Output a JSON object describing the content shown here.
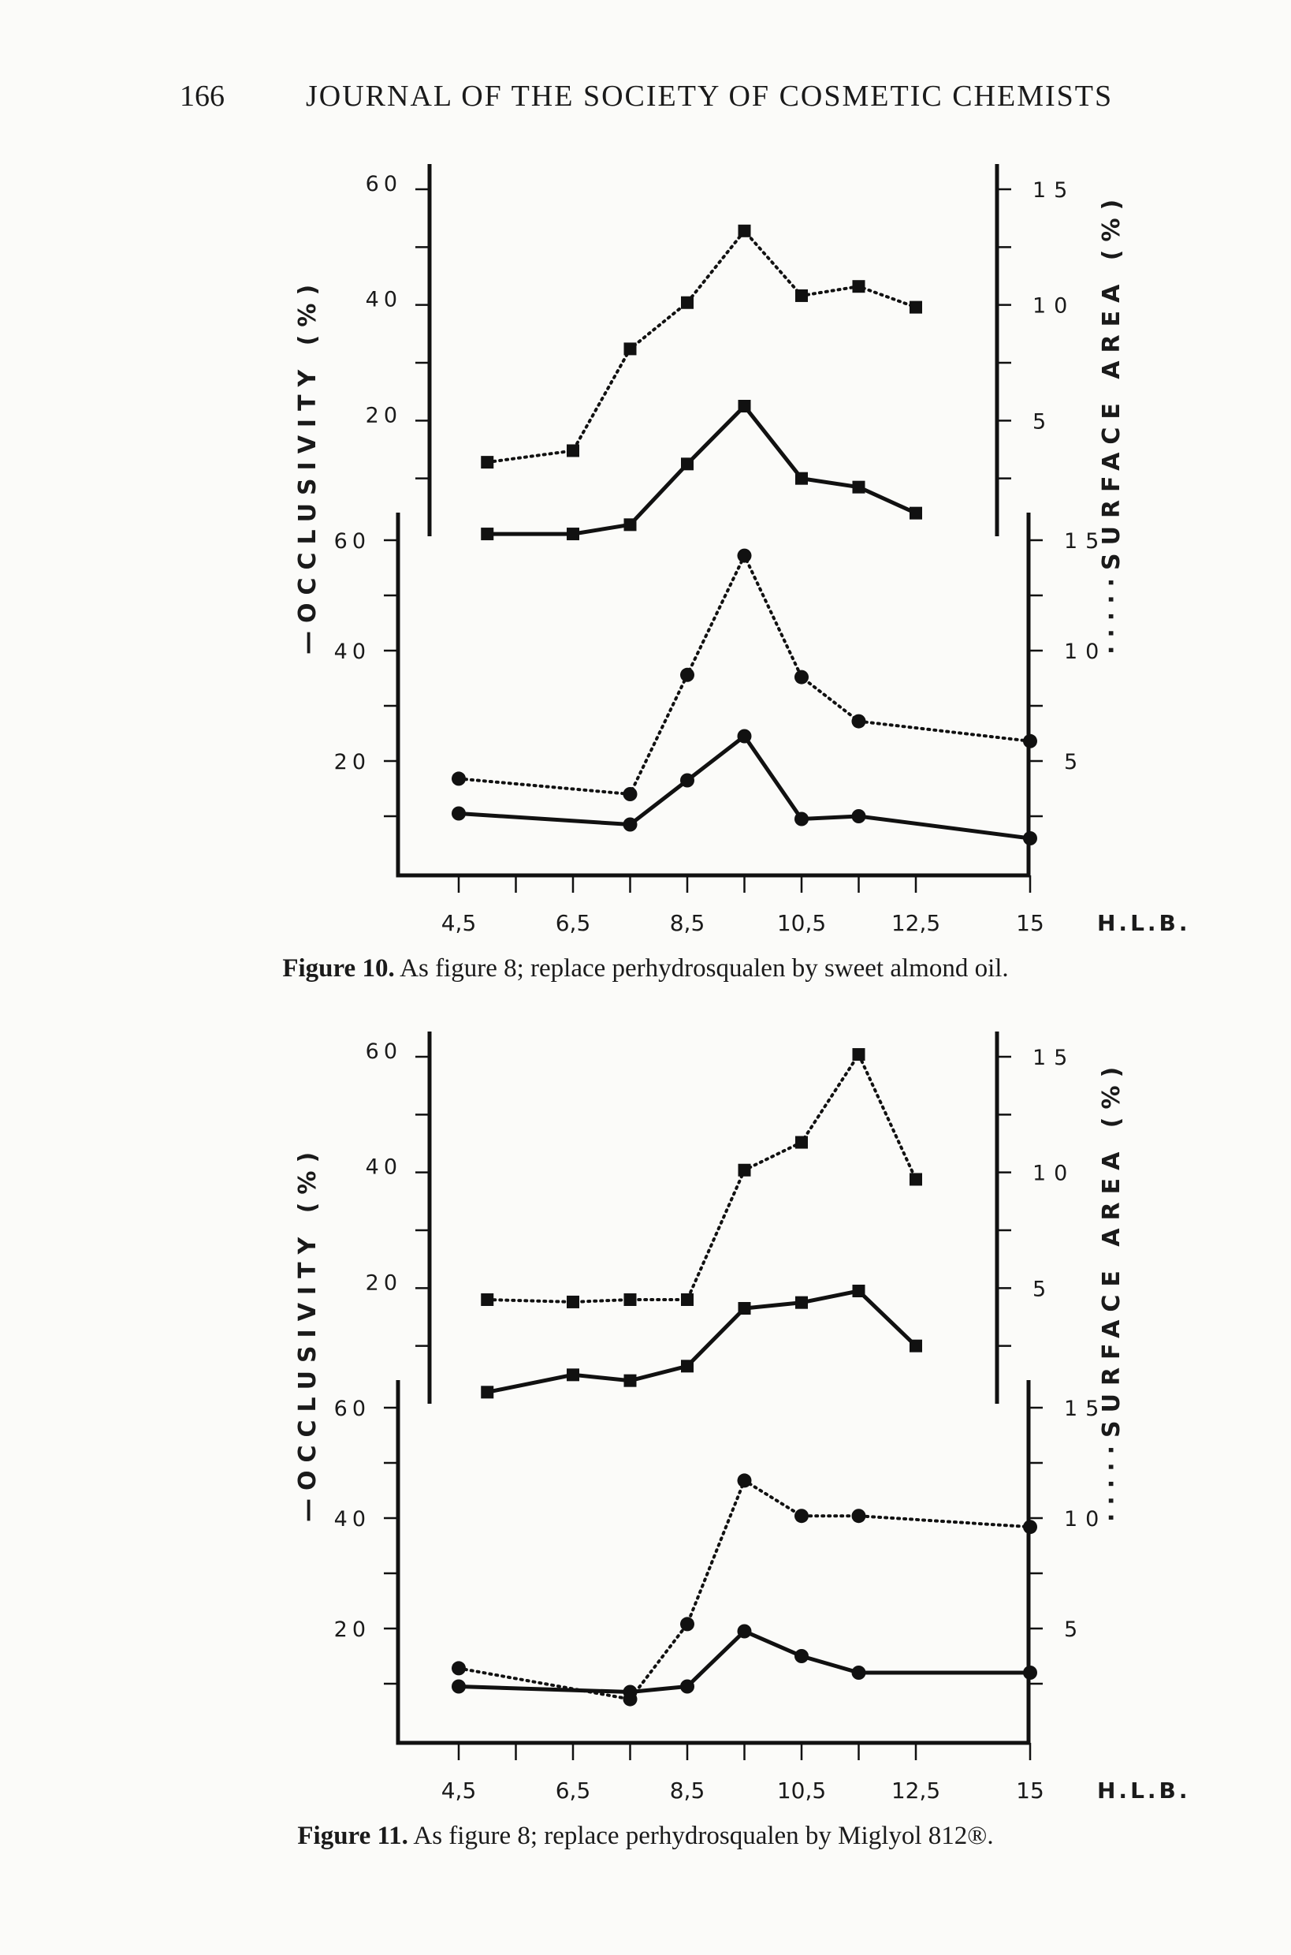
{
  "header": {
    "page_number": "166",
    "journal_title": "JOURNAL OF THE SOCIETY OF COSMETIC CHEMISTS"
  },
  "figures": [
    {
      "caption_label": "Figure 10.",
      "caption_text": "As figure 8; replace perhydrosqualen by sweet almond oil."
    },
    {
      "caption_label": "Figure 11.",
      "caption_text": "As figure 8; replace perhydrosqualen by Miglyol 812®."
    }
  ],
  "chart_data": [
    {
      "type": "line",
      "figure": "Figure 10",
      "panel": "upper (squares)",
      "xlabel": "H.L.B.",
      "x_tick_labels": [
        "4,5",
        "6,5",
        "8,5",
        "10,5",
        "12,5",
        "15"
      ],
      "left_axis": {
        "label": "OCCLUSIVITY (%)",
        "ticks": [
          "20",
          "40",
          "60"
        ],
        "ylim": [
          0,
          60
        ]
      },
      "right_axis": {
        "label": "SURFACE AREA (%)",
        "ticks": [
          "5",
          "10",
          "15"
        ],
        "ylim": [
          0,
          15
        ]
      },
      "series": [
        {
          "axis": "left",
          "style": "solid",
          "marker": "square",
          "x": [
            5,
            6.5,
            7.5,
            8.5,
            9.5,
            10.5,
            11.5,
            12.5
          ],
          "values": [
            0.4,
            0.4,
            2,
            12.5,
            22.5,
            10,
            8.5,
            4
          ]
        },
        {
          "axis": "right",
          "style": "dotted",
          "marker": "square",
          "x": [
            5,
            6.5,
            7.5,
            8.5,
            9.5,
            10.5,
            11.5,
            12.5
          ],
          "values": [
            3.2,
            3.7,
            8.1,
            10.1,
            13.2,
            10.4,
            10.8,
            9.9
          ]
        }
      ]
    },
    {
      "type": "line",
      "figure": "Figure 10",
      "panel": "lower (circles)",
      "xlabel": "H.L.B.",
      "x_tick_labels": [
        "4,5",
        "6,5",
        "8,5",
        "10,5",
        "12,5",
        "15"
      ],
      "left_axis": {
        "label": "OCCLUSIVITY (%)",
        "ticks": [
          "20",
          "40",
          "60"
        ],
        "ylim": [
          0,
          60
        ]
      },
      "right_axis": {
        "label": "SURFACE AREA (%)",
        "ticks": [
          "5",
          "10",
          "15"
        ],
        "ylim": [
          0,
          15
        ]
      },
      "series": [
        {
          "axis": "left",
          "style": "solid",
          "marker": "circle",
          "x": [
            4.5,
            7.5,
            8.5,
            9.5,
            10.5,
            11.5,
            14.5
          ],
          "values": [
            10.5,
            8.5,
            16.5,
            24.5,
            9.5,
            10,
            6
          ]
        },
        {
          "axis": "right",
          "style": "dotted",
          "marker": "circle",
          "x": [
            4.5,
            7.5,
            8.5,
            9.5,
            10.5,
            11.5,
            14.5
          ],
          "values": [
            4.2,
            3.5,
            8.9,
            14.3,
            8.8,
            6.8,
            5.9
          ]
        }
      ]
    },
    {
      "type": "line",
      "figure": "Figure 11",
      "panel": "upper (squares)",
      "xlabel": "H.L.B.",
      "x_tick_labels": [
        "4,5",
        "6,5",
        "8,5",
        "10,5",
        "12,5",
        "15"
      ],
      "left_axis": {
        "label": "OCCLUSIVITY (%)",
        "ticks": [
          "20",
          "40",
          "60"
        ],
        "ylim": [
          0,
          60
        ]
      },
      "right_axis": {
        "label": "SURFACE AREA (%)",
        "ticks": [
          "5",
          "10",
          "15"
        ],
        "ylim": [
          0,
          15
        ]
      },
      "series": [
        {
          "axis": "left",
          "style": "solid",
          "marker": "square",
          "x": [
            5,
            6.5,
            7.5,
            8.5,
            9.5,
            10.5,
            11.5,
            12.5
          ],
          "values": [
            2,
            5,
            4,
            6.5,
            16.5,
            17.5,
            19.5,
            10
          ]
        },
        {
          "axis": "right",
          "style": "dotted",
          "marker": "square",
          "x": [
            5,
            6.5,
            7.5,
            8.5,
            9.5,
            10.5,
            11.5,
            12.5
          ],
          "values": [
            4.5,
            4.4,
            4.5,
            4.5,
            10.1,
            11.3,
            15.1,
            9.7
          ]
        }
      ]
    },
    {
      "type": "line",
      "figure": "Figure 11",
      "panel": "lower (circles)",
      "xlabel": "H.L.B.",
      "x_tick_labels": [
        "4,5",
        "6,5",
        "8,5",
        "10,5",
        "12,5",
        "15"
      ],
      "left_axis": {
        "label": "OCCLUSIVITY (%)",
        "ticks": [
          "20",
          "40",
          "60"
        ],
        "ylim": [
          0,
          60
        ]
      },
      "right_axis": {
        "label": "SURFACE AREA (%)",
        "ticks": [
          "5",
          "10",
          "15"
        ],
        "ylim": [
          0,
          15
        ]
      },
      "series": [
        {
          "axis": "left",
          "style": "solid",
          "marker": "circle",
          "x": [
            4.5,
            7.5,
            8.5,
            9.5,
            10.5,
            11.5,
            14.5
          ],
          "values": [
            9.5,
            8.5,
            9.5,
            19.5,
            15,
            12,
            12
          ]
        },
        {
          "axis": "right",
          "style": "dotted",
          "marker": "circle",
          "x": [
            4.5,
            7.5,
            8.5,
            9.5,
            10.5,
            11.5,
            14.5
          ],
          "values": [
            3.2,
            1.8,
            5.2,
            11.7,
            10.1,
            10.1,
            9.6
          ]
        }
      ]
    }
  ]
}
